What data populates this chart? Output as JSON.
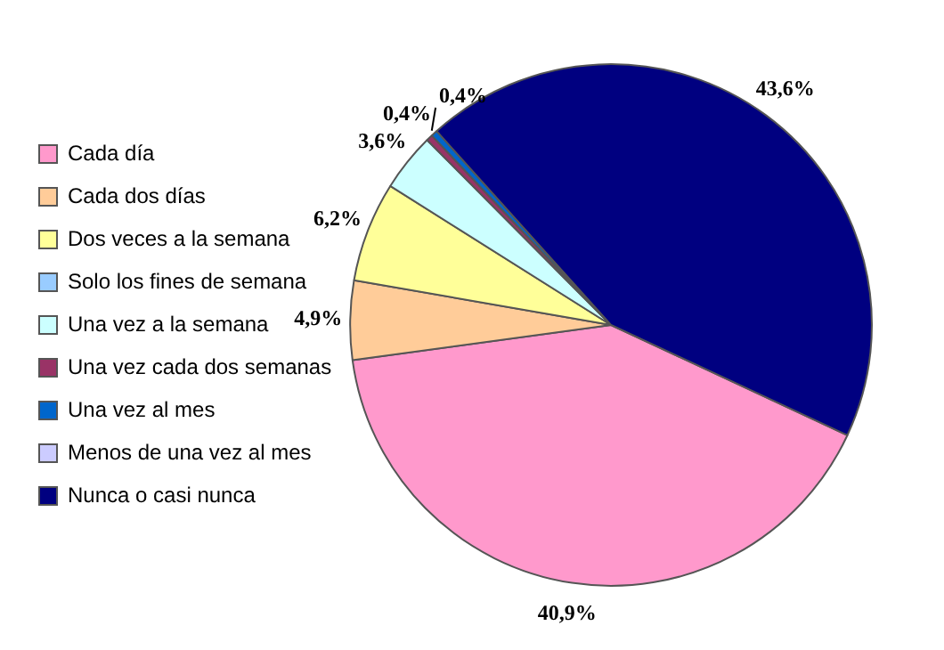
{
  "chart_data": {
    "type": "pie",
    "categories": [
      "Cada día",
      "Cada dos días",
      "Dos veces a la semana",
      "Solo los fines de semana",
      "Una vez a la semana",
      "Una vez cada dos semanas",
      "Una vez al mes",
      "Menos de una vez al mes",
      "Nunca o casi nunca"
    ],
    "values": [
      40.9,
      4.9,
      6.2,
      0,
      3.6,
      0.4,
      0.4,
      0,
      43.6
    ],
    "colors": [
      "#ff99cc",
      "#ffcc99",
      "#ffff99",
      "#99ccff",
      "#ccffff",
      "#993366",
      "#0066cc",
      "#ccccff",
      "#000080"
    ],
    "value_labels": [
      "40,9%",
      "4,9%",
      "6,2%",
      null,
      "3,6%",
      "0,4%",
      "0,4%",
      null,
      "43,6%"
    ],
    "legend": "left"
  }
}
